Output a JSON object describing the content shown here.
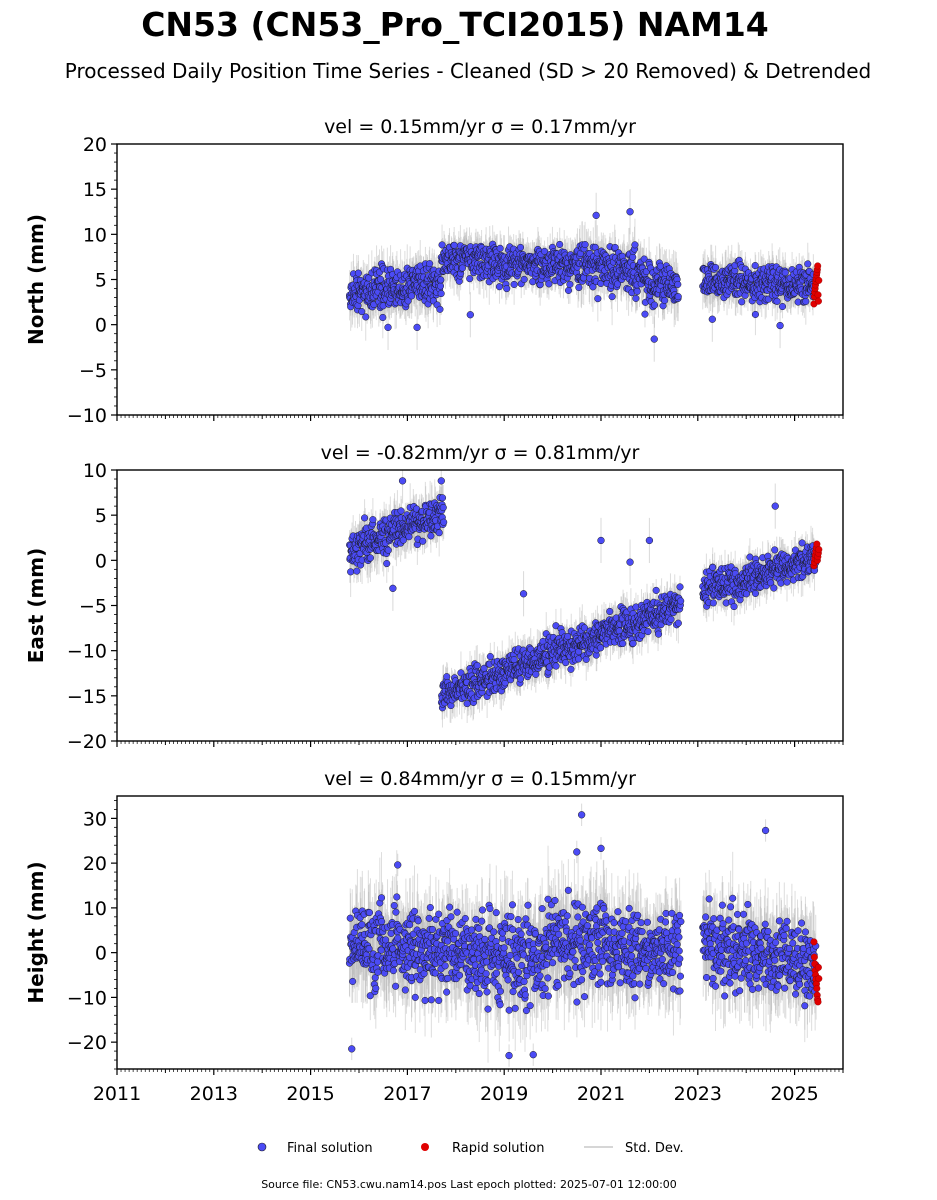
{
  "title": "CN53 (CN53_Pro_TCI2015) NAM14",
  "subtitle": "Processed Daily Position Time Series - Cleaned (SD > 20 Removed) & Detrended",
  "footer": "Source file: CN53.cwu.nam14.pos  Last epoch plotted: 2025-07-01 12:00:00",
  "legend": [
    {
      "label": "Final solution",
      "color": "#4b4bf5",
      "kind": "marker"
    },
    {
      "label": "Rapid solution",
      "color": "#e00000",
      "kind": "marker"
    },
    {
      "label": "Std. Dev.",
      "color": "#c8c8c8",
      "kind": "line"
    }
  ],
  "colors": {
    "final": "#4b4bf5",
    "rapid": "#e00000",
    "sd": "#b4b4b4",
    "marker_edge": "#1a1a1a"
  },
  "chart_data": [
    {
      "type": "scatter",
      "component": "north",
      "title": "vel = 0.15mm/yr   σ = 0.17mm/yr",
      "ylabel": "North (mm)",
      "xlim": [
        2011,
        2026
      ],
      "ylim": [
        -10,
        20
      ],
      "yticks": [
        -10,
        -5,
        0,
        5,
        10,
        15,
        20
      ],
      "ytick_labels": [
        "−10",
        "−5",
        "0",
        "5",
        "10",
        "15",
        "20"
      ],
      "x_ticks": [
        2011,
        2013,
        2015,
        2017,
        2019,
        2021,
        2023,
        2025
      ],
      "x_tick_labels": [],
      "series": [
        {
          "name": "Final solution",
          "segments": [
            {
              "x0": 2015.8,
              "x1": 2017.7,
              "y0": 3.5,
              "y1": 4.5,
              "noise": 1.5
            },
            {
              "x0": 2017.7,
              "x1": 2020.5,
              "y0": 7.2,
              "y1": 6.5,
              "noise": 1.3
            },
            {
              "x0": 2020.5,
              "x1": 2021.9,
              "y0": 6.5,
              "y1": 5.8,
              "noise": 1.6
            },
            {
              "x0": 2021.9,
              "x1": 2022.6,
              "y0": 4.5,
              "y1": 4.5,
              "noise": 1.5
            },
            {
              "x0": 2023.1,
              "x1": 2025.4,
              "y0": 4.7,
              "y1": 4.5,
              "noise": 1.3
            }
          ],
          "outliers": [
            [
              2021.6,
              12.5
            ],
            [
              2020.9,
              12.1
            ],
            [
              2022.1,
              -1.6
            ],
            [
              2018.3,
              1.1
            ],
            [
              2016.6,
              -0.3
            ],
            [
              2017.2,
              -0.3
            ],
            [
              2023.3,
              0.6
            ],
            [
              2024.7,
              -0.1
            ]
          ]
        },
        {
          "name": "Rapid solution",
          "x_range": [
            2025.4,
            2025.5
          ],
          "y_values": [
            2.3,
            3.1,
            3.6,
            4.0,
            4.4,
            4.8,
            5.1,
            5.5,
            5.8,
            6.1,
            6.5,
            3.3,
            2.6,
            4.9
          ]
        }
      ]
    },
    {
      "type": "scatter",
      "component": "east",
      "title": "vel = -0.82mm/yr   σ = 0.81mm/yr",
      "ylabel": "East (mm)",
      "xlim": [
        2011,
        2026
      ],
      "ylim": [
        -20,
        10
      ],
      "yticks": [
        -20,
        -15,
        -10,
        -5,
        0,
        5,
        10
      ],
      "ytick_labels": [
        "−20",
        "−15",
        "−10",
        "−5",
        "0",
        "5",
        "10"
      ],
      "x_ticks": [
        2011,
        2013,
        2015,
        2017,
        2019,
        2021,
        2023,
        2025
      ],
      "x_tick_labels": [],
      "series": [
        {
          "name": "Final solution",
          "segments": [
            {
              "x0": 2015.8,
              "x1": 2017.75,
              "y0": 1.0,
              "y1": 5.5,
              "noise": 1.4
            },
            {
              "x0": 2017.7,
              "x1": 2022.65,
              "y0": -15.0,
              "y1": -5.0,
              "noise": 1.2
            },
            {
              "x0": 2023.1,
              "x1": 2025.45,
              "y0": -3.5,
              "y1": 0.5,
              "noise": 1.2
            }
          ],
          "outliers": [
            [
              2016.7,
              -3.1
            ],
            [
              2016.9,
              8.8
            ],
            [
              2017.7,
              8.8
            ],
            [
              2019.4,
              -3.7
            ],
            [
              2021.0,
              2.2
            ],
            [
              2021.6,
              -0.2
            ],
            [
              2024.6,
              6.0
            ],
            [
              2022.0,
              2.2
            ]
          ]
        },
        {
          "name": "Rapid solution",
          "x_range": [
            2025.4,
            2025.5
          ],
          "y_values": [
            -0.6,
            -0.2,
            0.2,
            0.6,
            1.0,
            1.4,
            1.8,
            0.0,
            0.4,
            0.8,
            1.2
          ]
        }
      ]
    },
    {
      "type": "scatter",
      "component": "height",
      "title": "vel = 0.84mm/yr   σ = 0.15mm/yr",
      "ylabel": "Height (mm)",
      "xlim": [
        2011,
        2026
      ],
      "ylim": [
        -26,
        35
      ],
      "yticks": [
        -20,
        -10,
        0,
        10,
        20,
        30
      ],
      "ytick_labels": [
        "−20",
        "−10",
        "0",
        "10",
        "20",
        "30"
      ],
      "x_ticks": [
        2011,
        2013,
        2015,
        2017,
        2019,
        2021,
        2023,
        2025
      ],
      "x_tick_labels": [
        "2011",
        "2013",
        "2015",
        "2017",
        "2019",
        "2021",
        "2023",
        "2025"
      ],
      "series": [
        {
          "name": "Final solution",
          "segments": [
            {
              "x0": 2015.8,
              "x1": 2018.6,
              "y0": 1.0,
              "y1": 0.0,
              "noise": 5.5
            },
            {
              "x0": 2018.6,
              "x1": 2019.95,
              "y0": -2.0,
              "y1": -1.0,
              "noise": 6.0
            },
            {
              "x0": 2019.95,
              "x1": 2021.3,
              "y0": 3.0,
              "y1": 2.0,
              "noise": 6.0
            },
            {
              "x0": 2021.3,
              "x1": 2022.65,
              "y0": 1.0,
              "y1": 0.0,
              "noise": 5.5
            },
            {
              "x0": 2023.1,
              "x1": 2025.45,
              "y0": 2.0,
              "y1": -3.0,
              "noise": 5.5
            }
          ],
          "outliers": [
            [
              2020.6,
              30.8
            ],
            [
              2024.4,
              27.3
            ],
            [
              2015.85,
              -21.5
            ],
            [
              2019.1,
              -23.0
            ],
            [
              2019.6,
              -22.8
            ],
            [
              2016.8,
              19.6
            ],
            [
              2020.5,
              22.5
            ],
            [
              2021.0,
              23.3
            ]
          ]
        },
        {
          "name": "Rapid solution",
          "x_range": [
            2025.4,
            2025.5
          ],
          "y_values": [
            2.4,
            -1.0,
            -2.5,
            -4.0,
            -5.0,
            -6.0,
            -7.0,
            -8.0,
            -9.5,
            -10.5,
            -11.0,
            -3.3,
            -5.8
          ]
        }
      ]
    }
  ]
}
